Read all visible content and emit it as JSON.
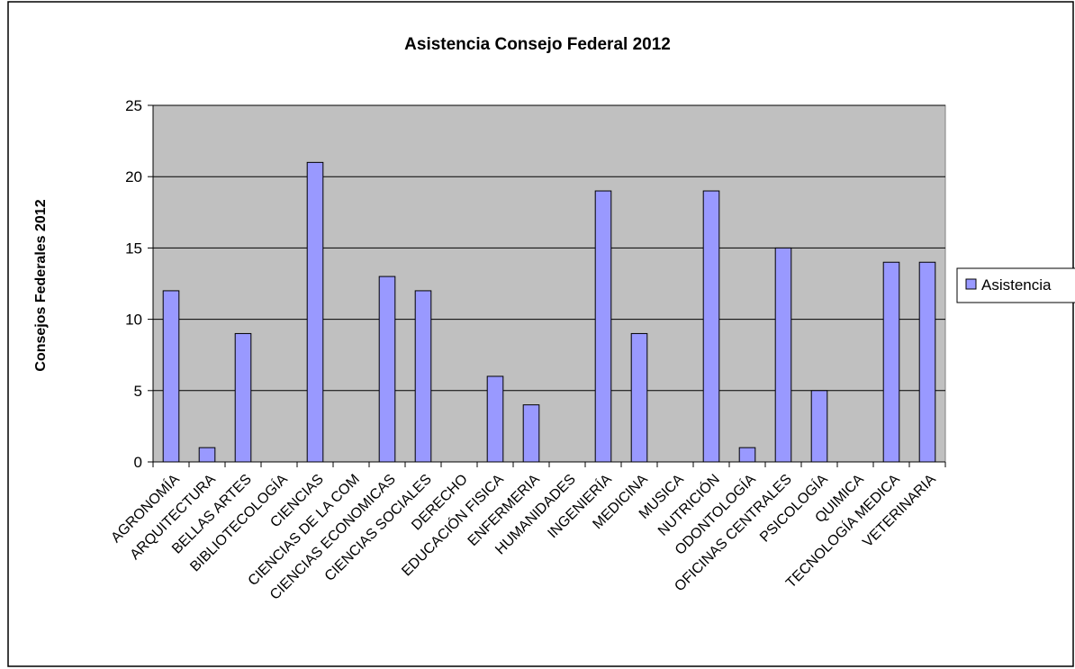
{
  "chart_data": {
    "type": "bar",
    "title": "Asistencia Consejo Federal 2012",
    "ylabel": "Consejos Federales 2012",
    "xlabel": "",
    "ylim": [
      0,
      25
    ],
    "yticks": [
      0,
      5,
      10,
      15,
      20,
      25
    ],
    "grid": true,
    "legend_position": "right",
    "categories": [
      "AGRONOMÍA",
      "ARQUITECTURA",
      "BELLAS ARTES",
      "BIBLIOTECOLOGÍA",
      "CIENCIAS",
      "CIENCIAS DE LA COM",
      "CIENCIAS ECONOMICAS",
      "CIENCIAS SOCIALES",
      "DERECHO",
      "EDUCACIÓN FISICA",
      "ENFERMERIA",
      "HUMANIDADES",
      "INGENIERÍA",
      "MEDICINA",
      "MUSICA",
      "NUTRICIÓN",
      "ODONTOLOGÍA",
      "OFICINAS CENTRALES",
      "PSICOLOGÍA",
      "QUIMICA",
      "TECNOLOGÍA MEDICA",
      "VETERINARIA"
    ],
    "series": [
      {
        "name": "Asistencia",
        "color": "#9999ff",
        "values": [
          12,
          1,
          9,
          0,
          21,
          0,
          13,
          12,
          0,
          6,
          4,
          0,
          19,
          9,
          0,
          19,
          1,
          15,
          5,
          0,
          14,
          14
        ]
      }
    ],
    "plot_background": "#c0c0c0"
  }
}
